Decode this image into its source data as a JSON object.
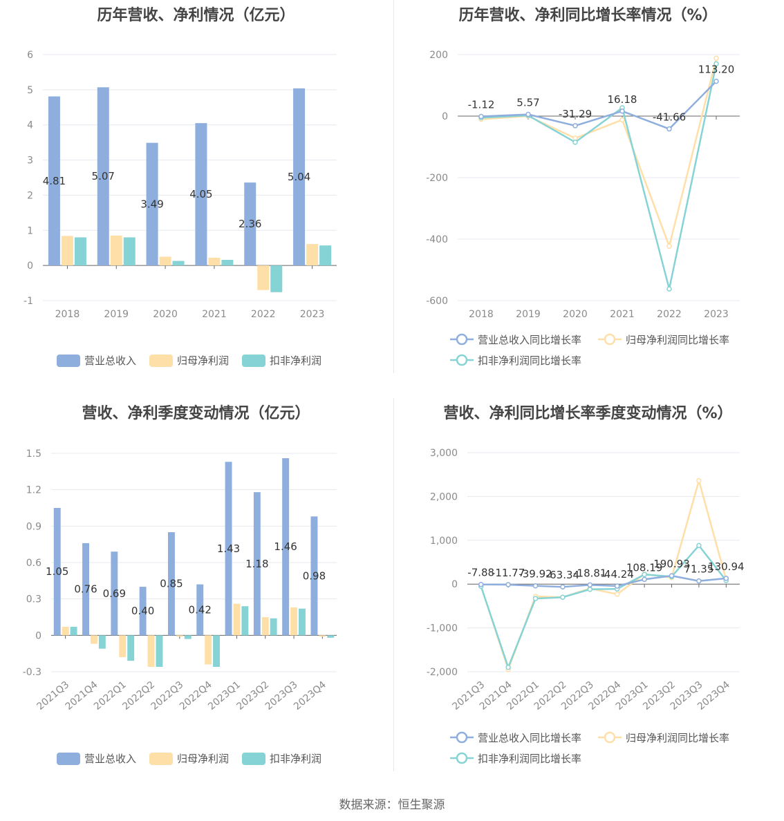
{
  "colors": {
    "revenue": "#8eaedd",
    "net_profit": "#ffdfa8",
    "deducted_profit": "#86d3d5",
    "grid": "#e6e8ef",
    "axis": "#666666"
  },
  "source": "数据来源：恒生聚源",
  "chart_data": [
    {
      "type": "bar",
      "title": "历年营收、净利情况（亿元）",
      "categories": [
        "2018",
        "2019",
        "2020",
        "2021",
        "2022",
        "2023"
      ],
      "ylim": [
        -1,
        6
      ],
      "yticks": [
        "-1",
        "0",
        "1",
        "2",
        "3",
        "4",
        "5",
        "6"
      ],
      "series": [
        {
          "name": "营业总收入",
          "values": [
            4.81,
            5.07,
            3.49,
            4.05,
            2.36,
            5.04
          ],
          "labels": [
            "4.81",
            "5.07",
            "3.49",
            "4.05",
            "2.36",
            "5.04"
          ]
        },
        {
          "name": "归母净利润",
          "values": [
            0.84,
            0.85,
            0.25,
            0.22,
            -0.7,
            0.61
          ]
        },
        {
          "name": "扣非净利润",
          "values": [
            0.8,
            0.8,
            0.13,
            0.16,
            -0.76,
            0.57
          ]
        }
      ],
      "legend": "bottom"
    },
    {
      "type": "line",
      "title": "历年营收、净利同比增长率情况（%）",
      "categories": [
        "2018",
        "2019",
        "2020",
        "2021",
        "2022",
        "2023"
      ],
      "ylim": [
        -600,
        200
      ],
      "yticks": [
        "-600",
        "-400",
        "-200",
        "0",
        "200"
      ],
      "series": [
        {
          "name": "营业总收入同比增长率",
          "values": [
            -1.12,
            5.57,
            -31.29,
            16.18,
            -41.66,
            113.2
          ],
          "labels": [
            "-1.12",
            "5.57",
            "-31.29",
            "16.18",
            "-41.66",
            "113.20"
          ]
        },
        {
          "name": "归母净利润同比增长率",
          "values": [
            -10,
            0,
            -72,
            -12,
            -423,
            188
          ]
        },
        {
          "name": "扣非净利润同比增长率",
          "values": [
            -5,
            2,
            -85,
            27,
            -562,
            170
          ]
        }
      ],
      "legend": "bottom"
    },
    {
      "type": "bar",
      "title": "营收、净利季度变动情况（亿元）",
      "categories": [
        "2021Q3",
        "2021Q4",
        "2022Q1",
        "2022Q2",
        "2022Q3",
        "2022Q4",
        "2023Q1",
        "2023Q2",
        "2023Q3",
        "2023Q4"
      ],
      "ylim": [
        -0.3,
        1.5
      ],
      "yticks": [
        "-0.3",
        "0",
        "0.3",
        "0.6",
        "0.9",
        "1.2",
        "1.5"
      ],
      "series": [
        {
          "name": "营业总收入",
          "values": [
            1.05,
            0.76,
            0.69,
            0.4,
            0.85,
            0.42,
            1.43,
            1.18,
            1.46,
            0.98
          ],
          "labels": [
            "1.05",
            "0.76",
            "0.69",
            "0.40",
            "0.85",
            "0.42",
            "1.43",
            "1.18",
            "1.46",
            "0.98"
          ]
        },
        {
          "name": "归母净利润",
          "values": [
            0.07,
            -0.07,
            -0.18,
            -0.26,
            -0.01,
            -0.24,
            0.26,
            0.15,
            0.23,
            -0.01
          ]
        },
        {
          "name": "扣非净利润",
          "values": [
            0.07,
            -0.11,
            -0.21,
            -0.26,
            -0.03,
            -0.26,
            0.24,
            0.14,
            0.22,
            -0.02
          ]
        }
      ],
      "legend": "bottom"
    },
    {
      "type": "line",
      "title": "营收、净利同比增长率季度变动情况（%）",
      "categories": [
        "2021Q3",
        "2021Q4",
        "2022Q1",
        "2022Q2",
        "2022Q3",
        "2022Q4",
        "2023Q1",
        "2023Q2",
        "2023Q3",
        "2023Q4"
      ],
      "ylim": [
        -2000,
        3000
      ],
      "yticks": [
        "-2,000",
        "-1,000",
        "0",
        "1,000",
        "2,000",
        "3,000"
      ],
      "series": [
        {
          "name": "营业总收入同比增长率",
          "values": [
            -7.88,
            -11.77,
            -39.92,
            -63.34,
            -18.81,
            -44.24,
            108.19,
            190.93,
            71.35,
            130.94
          ],
          "labels": [
            "-7.88",
            "-11.77",
            "-39.92",
            "-63.34",
            "-18.81",
            "-44.24",
            "108.19",
            "190.93",
            "71.35",
            "130.94"
          ]
        },
        {
          "name": "归母净利润同比增长率",
          "values": [
            -40,
            -1950,
            -280,
            -300,
            -100,
            -230,
            230,
            150,
            2360,
            100
          ]
        },
        {
          "name": "扣非净利润同比增长率",
          "values": [
            -50,
            -1900,
            -330,
            -300,
            -120,
            -110,
            220,
            170,
            880,
            80
          ]
        }
      ],
      "legend": "bottom"
    }
  ]
}
